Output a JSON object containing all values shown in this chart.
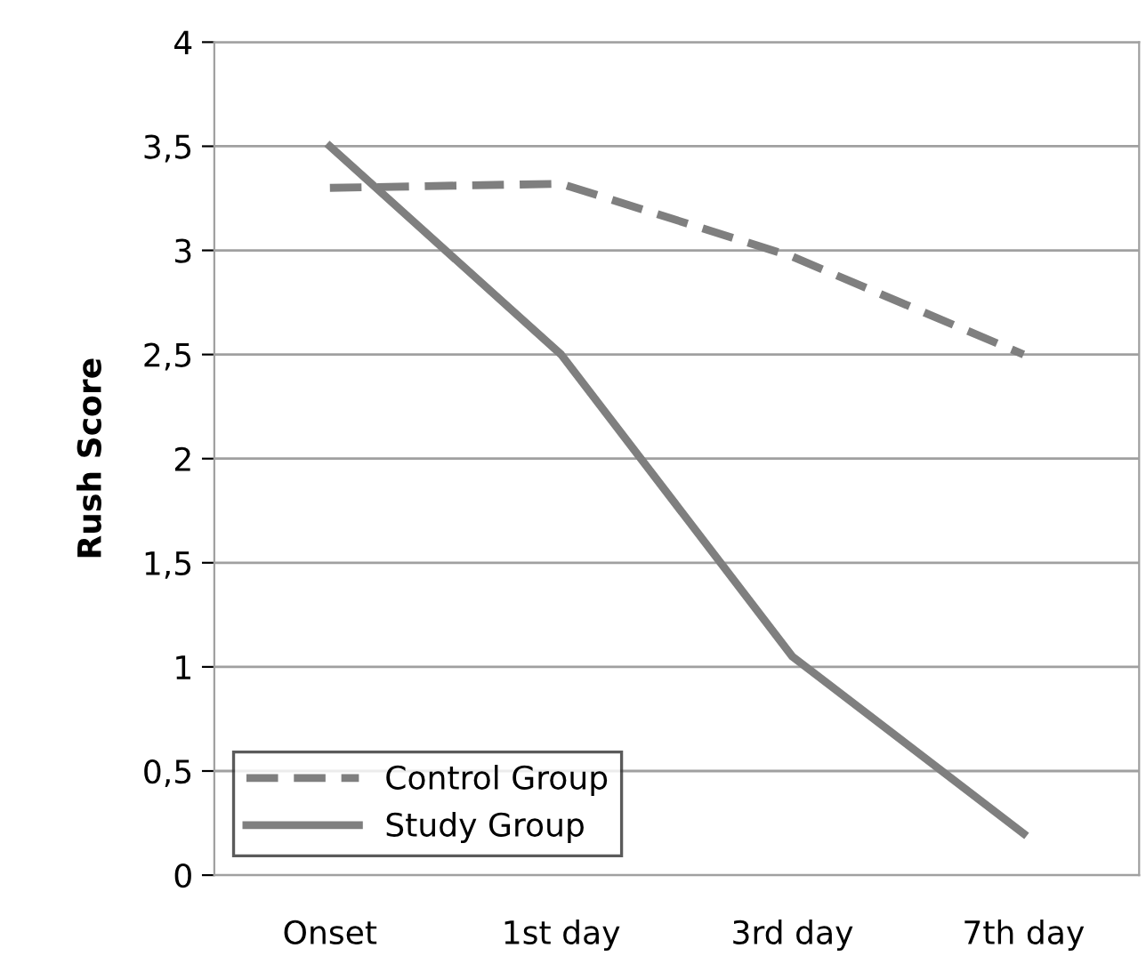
{
  "chart_data": {
    "type": "line",
    "ylabel": "Rush Score",
    "categories": [
      "Onset",
      "1st day",
      "3rd day",
      "7th day"
    ],
    "series": [
      {
        "name": "Control Group",
        "color": "#7f7f7f",
        "line_style": "dashed",
        "values": [
          3.3,
          3.32,
          2.97,
          2.5
        ]
      },
      {
        "name": "Study Group",
        "color": "#7f7f7f",
        "line_style": "solid",
        "values": [
          3.5,
          2.5,
          1.05,
          0.2
        ]
      }
    ],
    "ylim": [
      0,
      4
    ],
    "yticks": [
      0,
      {
        "value": 0.5,
        "label": "0,5"
      },
      1,
      {
        "value": 1.5,
        "label": "1,5"
      },
      2,
      {
        "value": 2.5,
        "label": "2,5"
      },
      3,
      {
        "value": 3.5,
        "label": "3,5"
      },
      4
    ],
    "grid": "y",
    "legend": "bottom left",
    "marker": "none"
  }
}
